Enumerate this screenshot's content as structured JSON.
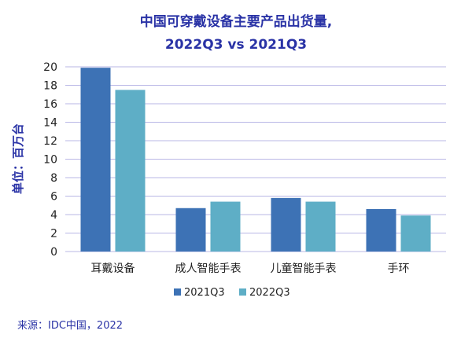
{
  "chart_data": {
    "type": "bar",
    "title_line1": "中国可穿戴设备主要产品出货量,",
    "title_line2": "2022Q3 vs 2021Q3",
    "ylabel": "单位：百万台",
    "categories": [
      "耳戴设备",
      "成人智能手表",
      "儿童智能手表",
      "手环"
    ],
    "series": [
      {
        "name": "2021Q3",
        "values": [
          19.9,
          4.7,
          5.8,
          4.6
        ],
        "color": "#3d72b5"
      },
      {
        "name": "2022Q3",
        "values": [
          17.5,
          5.4,
          5.4,
          3.9
        ],
        "color": "#5eaec6"
      }
    ],
    "ylim": [
      0,
      20
    ],
    "yticks": [
      "0",
      "2",
      "4",
      "6",
      "8",
      "10",
      "12",
      "14",
      "16",
      "18",
      "20"
    ],
    "grid": true,
    "legend_position": "bottom-center",
    "source": "来源：IDC中国，2022"
  }
}
